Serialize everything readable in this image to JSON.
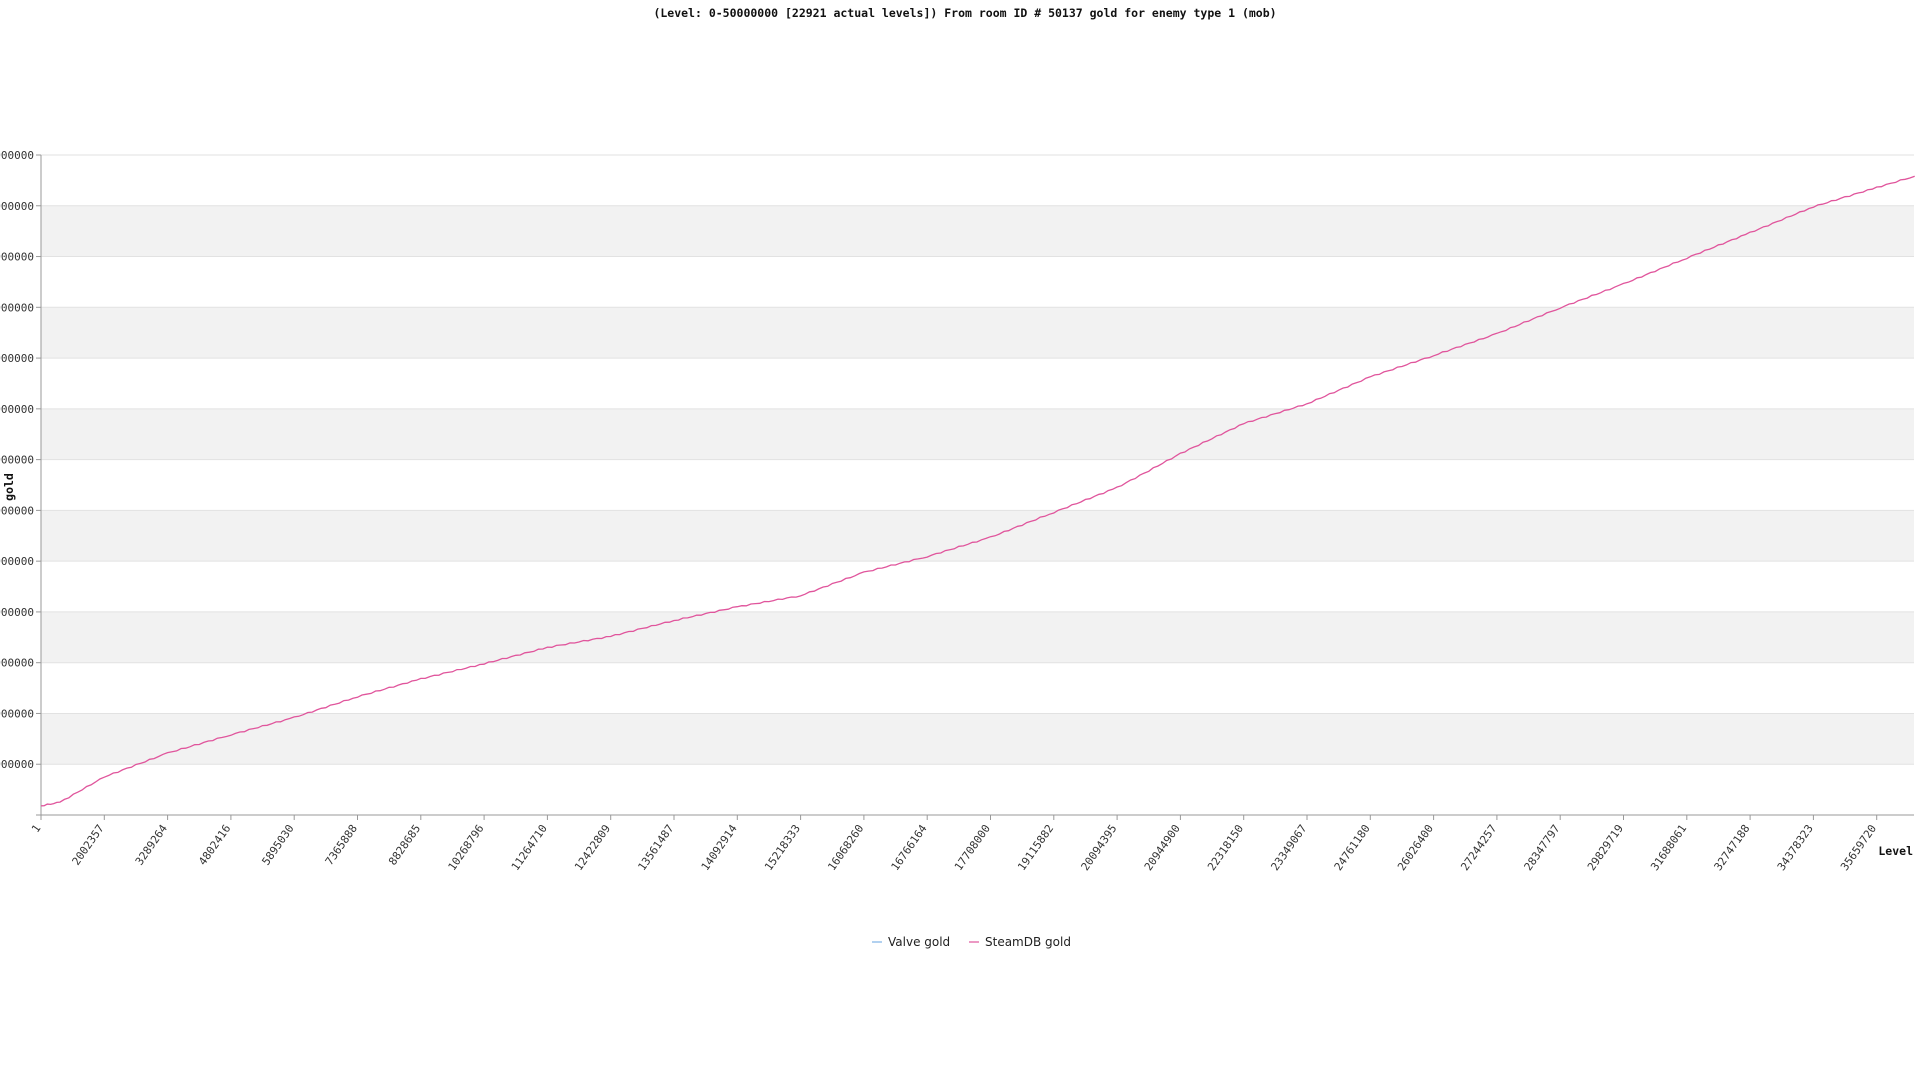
{
  "chart_data": {
    "type": "line",
    "title": "(Level: 0-50000000 [22921 actual levels]) From room ID # 50137 gold for enemy type 1 (mob)",
    "xlabel": "Level",
    "ylabel": "gold",
    "x_tick_labels": [
      "1",
      "2002357",
      "3289264",
      "4802416",
      "5895030",
      "7365888",
      "8828685",
      "10268796",
      "11264710",
      "12422809",
      "13561487",
      "14092914",
      "15218333",
      "16068260",
      "16766164",
      "17708000",
      "19115882",
      "20094395",
      "20944900",
      "22318150",
      "23349067",
      "24761180",
      "26026400",
      "27244257",
      "28347797",
      "29829719",
      "31688061",
      "32747188",
      "34378323",
      "35659720"
    ],
    "y_tick_labels": [
      "",
      "000000",
      "000000",
      "000000",
      "000000",
      "000000",
      "000000",
      "000000",
      "000000",
      "000000",
      "000000",
      "000000",
      "000000",
      "000000"
    ],
    "ylim": [
      0,
      13
    ],
    "grid": "horizontal alternating bands",
    "legend_position": "bottom-center",
    "series": [
      {
        "name": "Valve gold",
        "color": "#7fb2e5",
        "values": []
      },
      {
        "name": "SteamDB gold",
        "color": "#e0559c",
        "x_index": [
          0,
          0.3,
          1,
          2,
          3,
          4,
          5,
          6,
          7,
          8,
          9,
          10,
          11,
          12,
          13,
          14,
          15,
          16,
          17,
          17.5,
          18,
          19,
          20,
          21,
          22,
          23,
          24,
          25,
          26,
          27,
          28,
          29,
          29.6
        ],
        "values": [
          0.18,
          0.25,
          0.75,
          1.22,
          1.58,
          1.92,
          2.33,
          2.68,
          2.98,
          3.3,
          3.52,
          3.83,
          4.1,
          4.32,
          4.78,
          5.09,
          5.47,
          5.96,
          6.45,
          6.78,
          7.12,
          7.71,
          8.1,
          8.63,
          9.05,
          9.48,
          9.99,
          10.46,
          10.97,
          11.47,
          11.98,
          12.36,
          12.58
        ]
      }
    ]
  }
}
